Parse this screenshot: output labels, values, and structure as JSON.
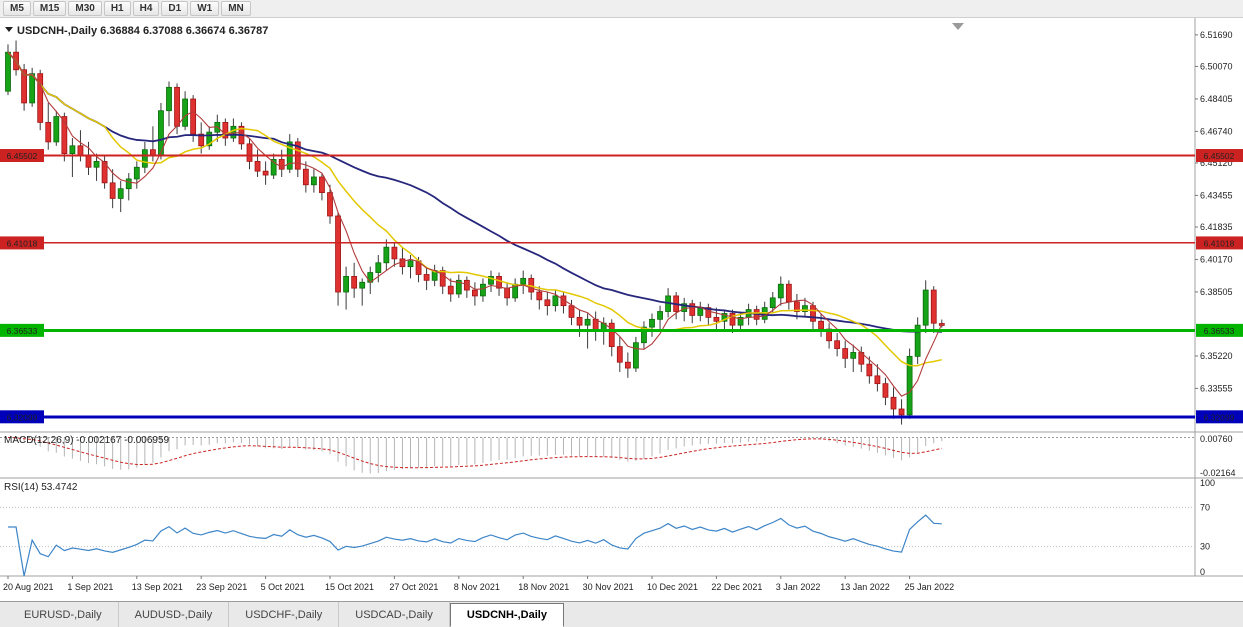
{
  "toolbar": {
    "timeframes": [
      "M5",
      "M15",
      "M30",
      "H1",
      "H4",
      "D1",
      "W1",
      "MN"
    ]
  },
  "title": {
    "symbol": "USDCNH-,Daily",
    "open": "6.36884",
    "high": "6.37088",
    "low": "6.36674",
    "close": "6.36787"
  },
  "tabs": [
    {
      "label": "EURUSD-,Daily",
      "active": false
    },
    {
      "label": "AUDUSD-,Daily",
      "active": false
    },
    {
      "label": "USDCHF-,Daily",
      "active": false
    },
    {
      "label": "USDCAD-,Daily",
      "active": false
    },
    {
      "label": "USDCNH-,Daily",
      "active": true
    }
  ],
  "chart_data": {
    "type": "candlestick",
    "title": "USDCNH-,Daily",
    "ylim": [
      6.3132,
      6.5235
    ],
    "style": {
      "up": "#17a317",
      "up_border": "#0b6b0b",
      "down": "#e03131",
      "down_border": "#9e1414",
      "wick": "#3a3a3a"
    },
    "price_ticks": [
      {
        "label": "6.51690",
        "value": 6.5169
      },
      {
        "label": "6.50070",
        "value": 6.5007
      },
      {
        "label": "6.48405",
        "value": 6.48405
      },
      {
        "label": "6.46740",
        "value": 6.4674
      },
      {
        "label": "6.45120",
        "value": 6.4512
      },
      {
        "label": "6.43455",
        "value": 6.43455
      },
      {
        "label": "6.41835",
        "value": 6.41835
      },
      {
        "label": "6.40170",
        "value": 6.4017
      },
      {
        "label": "6.38505",
        "value": 6.38505
      },
      {
        "label": "6.35220",
        "value": 6.3522
      },
      {
        "label": "6.33555",
        "value": 6.33555
      }
    ],
    "hlines": [
      {
        "price": 6.45502,
        "label": "6.45502",
        "color": "#cc2222",
        "width": 1.6
      },
      {
        "price": 6.41018,
        "label": "6.41018",
        "color": "#cc2222",
        "width": 1.6
      },
      {
        "price": 6.36533,
        "label": "6.36533",
        "color": "#00b400",
        "width": 3
      },
      {
        "price": 6.32099,
        "label": "6.32099",
        "color": "#0000bb",
        "width": 3
      }
    ],
    "moving_averages": [
      {
        "name": "slow",
        "period": 34,
        "color": "#26267d",
        "width": 1.8
      },
      {
        "name": "mid",
        "period": 13,
        "color": "#e3c800",
        "width": 1.5
      },
      {
        "name": "fast",
        "period": 5,
        "color": "#b23b3b",
        "width": 1.1
      }
    ],
    "x_labels": [
      {
        "text": "20 Aug 2021",
        "i": 0
      },
      {
        "text": "1 Sep 2021",
        "i": 8
      },
      {
        "text": "13 Sep 2021",
        "i": 16
      },
      {
        "text": "23 Sep 2021",
        "i": 24
      },
      {
        "text": "5 Oct 2021",
        "i": 32
      },
      {
        "text": "15 Oct 2021",
        "i": 40
      },
      {
        "text": "27 Oct 2021",
        "i": 48
      },
      {
        "text": "8 Nov 2021",
        "i": 56
      },
      {
        "text": "18 Nov 2021",
        "i": 64
      },
      {
        "text": "30 Nov 2021",
        "i": 72
      },
      {
        "text": "10 Dec 2021",
        "i": 80
      },
      {
        "text": "22 Dec 2021",
        "i": 88
      },
      {
        "text": "3 Jan 2022",
        "i": 96
      },
      {
        "text": "13 Jan 2022",
        "i": 104
      },
      {
        "text": "25 Jan 2022",
        "i": 112
      }
    ],
    "macd": {
      "label": "MACD(12,26,9)",
      "fast": 12,
      "slow": 26,
      "signal": 9,
      "values": [
        "-0.002167",
        "-0.006959"
      ],
      "axis_labels": [
        "0.00760",
        "-0.02164"
      ],
      "signal_color": "#cc2222",
      "hist_color": "#b5b5b5"
    },
    "rsi": {
      "label": "RSI(14)",
      "period": 14,
      "value": "53.4742",
      "color": "#3d85c8",
      "levels": [
        70,
        30
      ],
      "axis_labels": [
        {
          "label": "100",
          "v": 100
        },
        {
          "label": "70",
          "v": 70
        },
        {
          "label": "30",
          "v": 30
        },
        {
          "label": "0",
          "v": 0
        }
      ]
    },
    "candles": [
      [
        6.488,
        6.512,
        6.486,
        6.508
      ],
      [
        6.508,
        6.514,
        6.496,
        6.499
      ],
      [
        6.499,
        6.502,
        6.478,
        6.482
      ],
      [
        6.482,
        6.5,
        6.48,
        6.497
      ],
      [
        6.497,
        6.499,
        6.468,
        6.472
      ],
      [
        6.472,
        6.482,
        6.458,
        6.462
      ],
      [
        6.462,
        6.478,
        6.46,
        6.475
      ],
      [
        6.475,
        6.477,
        6.452,
        6.456
      ],
      [
        6.456,
        6.464,
        6.444,
        6.46
      ],
      [
        6.46,
        6.468,
        6.452,
        6.455
      ],
      [
        6.455,
        6.462,
        6.445,
        6.449
      ],
      [
        6.449,
        6.456,
        6.442,
        6.452
      ],
      [
        6.452,
        6.455,
        6.438,
        6.441
      ],
      [
        6.441,
        6.448,
        6.428,
        6.433
      ],
      [
        6.433,
        6.442,
        6.426,
        6.438
      ],
      [
        6.438,
        6.446,
        6.432,
        6.443
      ],
      [
        6.443,
        6.452,
        6.438,
        6.449
      ],
      [
        6.449,
        6.462,
        6.446,
        6.458
      ],
      [
        6.458,
        6.47,
        6.452,
        6.455
      ],
      [
        6.455,
        6.482,
        6.453,
        6.478
      ],
      [
        6.478,
        6.493,
        6.47,
        6.49
      ],
      [
        6.49,
        6.492,
        6.466,
        6.47
      ],
      [
        6.47,
        6.488,
        6.468,
        6.484
      ],
      [
        6.484,
        6.486,
        6.462,
        6.466
      ],
      [
        6.466,
        6.472,
        6.456,
        6.46
      ],
      [
        6.46,
        6.47,
        6.458,
        6.467
      ],
      [
        6.467,
        6.476,
        6.462,
        6.472
      ],
      [
        6.472,
        6.474,
        6.46,
        6.464
      ],
      [
        6.464,
        6.474,
        6.462,
        6.47
      ],
      [
        6.47,
        6.472,
        6.458,
        6.461
      ],
      [
        6.461,
        6.464,
        6.448,
        6.452
      ],
      [
        6.452,
        6.458,
        6.444,
        6.447
      ],
      [
        6.447,
        6.452,
        6.44,
        6.445
      ],
      [
        6.445,
        6.456,
        6.443,
        6.453
      ],
      [
        6.453,
        6.458,
        6.444,
        6.448
      ],
      [
        6.448,
        6.466,
        6.446,
        6.462
      ],
      [
        6.462,
        6.464,
        6.444,
        6.448
      ],
      [
        6.448,
        6.452,
        6.436,
        6.44
      ],
      [
        6.44,
        6.448,
        6.436,
        6.444
      ],
      [
        6.444,
        6.446,
        6.432,
        6.436
      ],
      [
        6.436,
        6.44,
        6.42,
        6.424
      ],
      [
        6.424,
        6.426,
        6.378,
        6.385
      ],
      [
        6.385,
        6.398,
        6.376,
        6.393
      ],
      [
        6.393,
        6.4,
        6.382,
        6.387
      ],
      [
        6.387,
        6.392,
        6.378,
        6.39
      ],
      [
        6.39,
        6.398,
        6.384,
        6.395
      ],
      [
        6.395,
        6.404,
        6.39,
        6.4
      ],
      [
        6.4,
        6.412,
        6.396,
        6.408
      ],
      [
        6.408,
        6.41,
        6.398,
        6.402
      ],
      [
        6.402,
        6.408,
        6.394,
        6.398
      ],
      [
        6.398,
        6.404,
        6.392,
        6.401
      ],
      [
        6.401,
        6.403,
        6.39,
        6.394
      ],
      [
        6.394,
        6.398,
        6.386,
        6.391
      ],
      [
        6.391,
        6.399,
        6.388,
        6.396
      ],
      [
        6.396,
        6.398,
        6.384,
        6.388
      ],
      [
        6.388,
        6.392,
        6.38,
        6.384
      ],
      [
        6.384,
        6.394,
        6.382,
        6.391
      ],
      [
        6.391,
        6.393,
        6.382,
        6.386
      ],
      [
        6.386,
        6.39,
        6.378,
        6.383
      ],
      [
        6.383,
        6.392,
        6.38,
        6.389
      ],
      [
        6.389,
        6.396,
        6.385,
        6.393
      ],
      [
        6.393,
        6.395,
        6.383,
        6.387
      ],
      [
        6.387,
        6.39,
        6.378,
        6.382
      ],
      [
        6.382,
        6.392,
        6.38,
        6.389
      ],
      [
        6.389,
        6.396,
        6.384,
        6.392
      ],
      [
        6.392,
        6.394,
        6.381,
        6.385
      ],
      [
        6.385,
        6.388,
        6.376,
        6.381
      ],
      [
        6.381,
        6.385,
        6.373,
        6.378
      ],
      [
        6.378,
        6.386,
        6.375,
        6.383
      ],
      [
        6.383,
        6.385,
        6.374,
        6.378
      ],
      [
        6.378,
        6.381,
        6.368,
        6.372
      ],
      [
        6.372,
        6.376,
        6.362,
        6.368
      ],
      [
        6.368,
        6.374,
        6.356,
        6.371
      ],
      [
        6.371,
        6.375,
        6.36,
        6.365
      ],
      [
        6.365,
        6.372,
        6.358,
        6.369
      ],
      [
        6.369,
        6.371,
        6.352,
        6.357
      ],
      [
        6.357,
        6.362,
        6.344,
        6.349
      ],
      [
        6.349,
        6.354,
        6.341,
        6.346
      ],
      [
        6.346,
        6.362,
        6.344,
        6.359
      ],
      [
        6.359,
        6.37,
        6.356,
        6.367
      ],
      [
        6.367,
        6.374,
        6.362,
        6.371
      ],
      [
        6.371,
        6.378,
        6.366,
        6.375
      ],
      [
        6.375,
        6.387,
        6.372,
        6.383
      ],
      [
        6.383,
        6.385,
        6.371,
        6.375
      ],
      [
        6.375,
        6.382,
        6.37,
        6.379
      ],
      [
        6.379,
        6.381,
        6.369,
        6.373
      ],
      [
        6.373,
        6.38,
        6.37,
        6.377
      ],
      [
        6.377,
        6.379,
        6.368,
        6.372
      ],
      [
        6.372,
        6.377,
        6.366,
        6.37
      ],
      [
        6.37,
        6.376,
        6.366,
        6.374
      ],
      [
        6.374,
        6.376,
        6.364,
        6.368
      ],
      [
        6.368,
        6.375,
        6.365,
        6.372
      ],
      [
        6.372,
        6.379,
        6.368,
        6.376
      ],
      [
        6.376,
        6.378,
        6.368,
        6.371
      ],
      [
        6.371,
        6.38,
        6.369,
        6.377
      ],
      [
        6.377,
        6.385,
        6.374,
        6.382
      ],
      [
        6.382,
        6.393,
        6.378,
        6.389
      ],
      [
        6.389,
        6.391,
        6.376,
        6.38
      ],
      [
        6.38,
        6.384,
        6.371,
        6.375
      ],
      [
        6.375,
        6.382,
        6.372,
        6.378
      ],
      [
        6.378,
        6.38,
        6.366,
        6.37
      ],
      [
        6.37,
        6.374,
        6.362,
        6.366
      ],
      [
        6.366,
        6.369,
        6.356,
        6.36
      ],
      [
        6.36,
        6.364,
        6.352,
        6.356
      ],
      [
        6.356,
        6.36,
        6.346,
        6.351
      ],
      [
        6.351,
        6.358,
        6.344,
        6.354
      ],
      [
        6.354,
        6.357,
        6.344,
        6.348
      ],
      [
        6.348,
        6.352,
        6.338,
        6.342
      ],
      [
        6.342,
        6.348,
        6.334,
        6.338
      ],
      [
        6.338,
        6.341,
        6.327,
        6.331
      ],
      [
        6.331,
        6.336,
        6.32,
        6.325
      ],
      [
        6.325,
        6.33,
        6.317,
        6.322
      ],
      [
        6.322,
        6.356,
        6.32,
        6.352
      ],
      [
        6.352,
        6.372,
        6.348,
        6.368
      ],
      [
        6.368,
        6.391,
        6.364,
        6.386
      ],
      [
        6.386,
        6.388,
        6.364,
        6.369
      ],
      [
        6.36884,
        6.37088,
        6.36674,
        6.36787
      ]
    ]
  }
}
